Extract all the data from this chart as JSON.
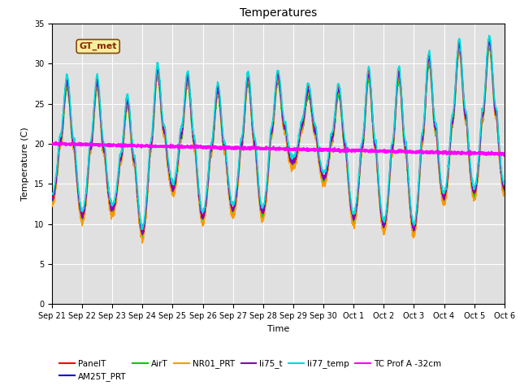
{
  "title": "Temperatures",
  "xlabel": "Time",
  "ylabel": "Temperature (C)",
  "ylim": [
    0,
    35
  ],
  "yticks": [
    0,
    5,
    10,
    15,
    20,
    25,
    30,
    35
  ],
  "plot_bg_color": "#e0e0e0",
  "annotation_text": "GT_met",
  "series": {
    "PanelT": {
      "color": "#ff0000",
      "lw": 1.2
    },
    "AM25T_PRT": {
      "color": "#0000dd",
      "lw": 1.2
    },
    "AirT": {
      "color": "#00cc00",
      "lw": 1.2
    },
    "NR01_PRT": {
      "color": "#ff9900",
      "lw": 1.2
    },
    "li75_t": {
      "color": "#8800bb",
      "lw": 1.2
    },
    "li77_temp": {
      "color": "#00dddd",
      "lw": 1.2
    },
    "TC Prof A -32cm": {
      "color": "#ff00ff",
      "lw": 1.8
    }
  },
  "n_days": 15,
  "pts_per_day": 144,
  "peak_days": [
    0.5,
    1.5,
    2.2,
    2.7,
    3.5,
    4.5,
    5.5,
    6.5,
    7.3,
    7.9,
    8.5,
    9.5,
    10.5,
    11.5,
    12.5,
    13.5,
    14.5
  ],
  "peak_maxes": [
    28,
    28,
    25,
    26,
    29.5,
    28.5,
    27,
    28.5,
    29.5,
    27,
    27,
    27,
    29,
    29,
    31,
    32.5,
    33
  ],
  "trough_days": [
    0.15,
    1.1,
    2.0,
    3.0,
    3.9,
    4.95,
    6.0,
    6.9,
    8.0,
    9.0,
    9.9,
    11.0,
    12.0,
    13.0,
    13.9
  ],
  "trough_mins": [
    13,
    11,
    12,
    9,
    15,
    11,
    12,
    11,
    18,
    16,
    11,
    10,
    9.5,
    13.5,
    14
  ]
}
